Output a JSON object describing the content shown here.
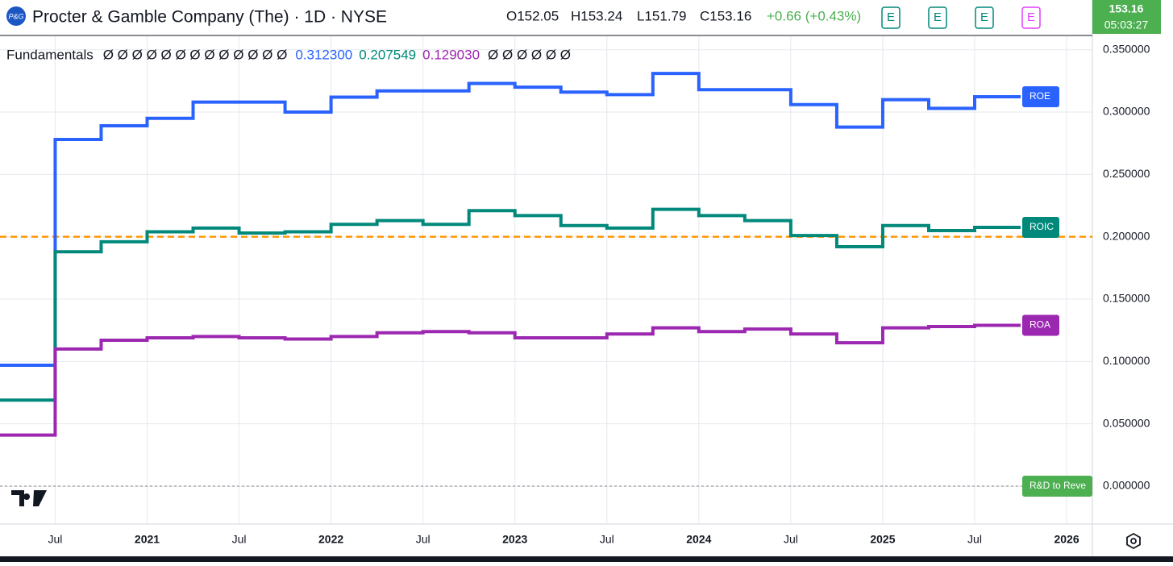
{
  "header": {
    "logo": "P&G",
    "title": "Procter & Gamble Company (The) · 1D · NYSE",
    "open": "O152.05",
    "high": "H153.24",
    "low": "L151.79",
    "close": "C153.16",
    "change": "+0.66 (+0.43%)",
    "event_label": "E",
    "price": "153.16",
    "countdown": "05:03:27"
  },
  "chart_data": {
    "type": "step",
    "legend_title": "Fundamentals",
    "na_before": "Ø Ø Ø Ø Ø Ø Ø Ø Ø Ø Ø Ø Ø",
    "na_after": "Ø Ø Ø Ø Ø Ø",
    "x": [
      2020.2,
      2020.5,
      2020.75,
      2021,
      2021.25,
      2021.5,
      2021.75,
      2022,
      2022.25,
      2022.5,
      2022.75,
      2023,
      2023.25,
      2023.5,
      2023.75,
      2024,
      2024.25,
      2024.5,
      2024.75,
      2025,
      2025.25,
      2025.5,
      2025.75
    ],
    "series": [
      {
        "name": "ROE",
        "color": "#2962ff",
        "legend_value": "0.312300",
        "values": [
          0.097,
          0.278,
          0.289,
          0.295,
          0.308,
          0.308,
          0.3,
          0.312,
          0.317,
          0.317,
          0.323,
          0.32,
          0.316,
          0.314,
          0.331,
          0.318,
          0.318,
          0.306,
          0.288,
          0.31,
          0.303,
          0.3123,
          0.3123
        ]
      },
      {
        "name": "ROIC",
        "color": "#00897b",
        "legend_value": "0.207549",
        "values": [
          0.069,
          0.188,
          0.196,
          0.204,
          0.207,
          0.203,
          0.204,
          0.21,
          0.213,
          0.21,
          0.221,
          0.217,
          0.209,
          0.207,
          0.222,
          0.217,
          0.213,
          0.201,
          0.192,
          0.209,
          0.205,
          0.207549,
          0.207549
        ]
      },
      {
        "name": "ROA",
        "color": "#9c27b0",
        "legend_value": "0.129030",
        "values": [
          0.041,
          0.11,
          0.117,
          0.119,
          0.12,
          0.119,
          0.118,
          0.12,
          0.123,
          0.124,
          0.123,
          0.119,
          0.119,
          0.122,
          0.127,
          0.124,
          0.126,
          0.122,
          0.115,
          0.127,
          0.128,
          0.12903,
          0.12903
        ]
      }
    ],
    "hlines": [
      {
        "value": 0.2,
        "color": "#ff9800"
      },
      {
        "value": 0,
        "color": "#787b86",
        "name": "R&D to Reve",
        "tag_color": "#4caf50"
      }
    ],
    "xlim": [
      2020.2,
      2026.14
    ],
    "xticks": [
      {
        "value": 2020.5,
        "label": "Jul"
      },
      2021,
      {
        "value": 2021.5,
        "label": "Jul"
      },
      2022,
      {
        "value": 2022.5,
        "label": "Jul"
      },
      2023,
      {
        "value": 2023.5,
        "label": "Jul"
      },
      2024,
      {
        "value": 2024.5,
        "label": "Jul"
      },
      2025,
      {
        "value": 2025.5,
        "label": "Jul"
      },
      2026
    ],
    "ylim": [
      -0.0304,
      0.3608
    ],
    "yticks": [
      {
        "value": 0,
        "label": "0.000000"
      },
      {
        "value": 0.05,
        "label": "0.050000"
      },
      {
        "value": 0.1,
        "label": "0.100000"
      },
      {
        "value": 0.15,
        "label": "0.150000"
      },
      {
        "value": 0.2,
        "label": "0.200000"
      },
      {
        "value": 0.25,
        "label": "0.250000"
      },
      {
        "value": 0.3,
        "label": "0.300000"
      },
      {
        "value": 0.35,
        "label": "0.350000"
      }
    ],
    "grid": true
  }
}
